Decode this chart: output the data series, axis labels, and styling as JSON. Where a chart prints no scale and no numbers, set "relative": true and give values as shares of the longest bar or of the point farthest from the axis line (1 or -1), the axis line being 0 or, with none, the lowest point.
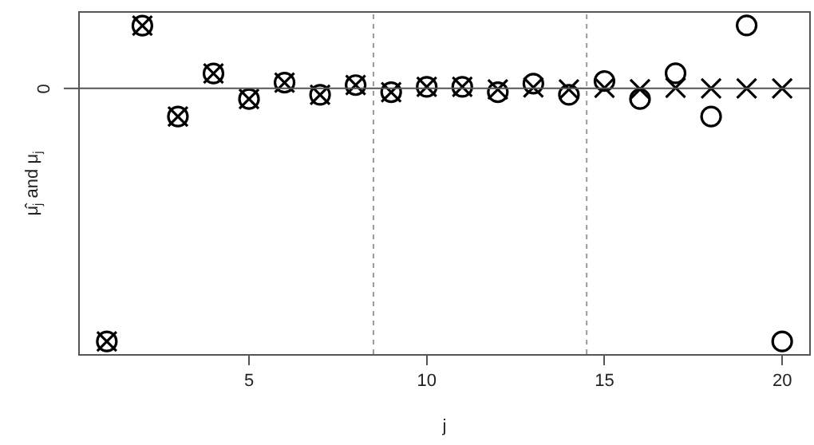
{
  "chart_data": {
    "type": "scatter",
    "xlabel": "j",
    "ylabel": "μ̂$_{j}$ and μ$_{j}$",
    "relative": true,
    "x": [
      1,
      2,
      3,
      4,
      5,
      6,
      7,
      8,
      9,
      10,
      11,
      12,
      13,
      14,
      15,
      16,
      17,
      18,
      19,
      20
    ],
    "xlim": [
      0.24,
      20.76
    ],
    "xticks": [
      5,
      10,
      15,
      20
    ],
    "series": [
      {
        "color": "#000000",
        "marker": "circle",
        "values": [
          -1,
          0.248,
          -0.111,
          0.059,
          -0.042,
          0.023,
          -0.025,
          0.013,
          -0.015,
          0.006,
          0.006,
          -0.015,
          0.019,
          -0.025,
          0.029,
          -0.042,
          0.06,
          -0.111,
          0.249,
          -1
        ]
      },
      {
        "color": "#000000",
        "marker": "cross",
        "values": [
          -1,
          0.248,
          -0.111,
          0.059,
          -0.042,
          0.023,
          -0.025,
          0.013,
          -0.015,
          0.006,
          0.006,
          -0.004,
          0.004,
          -0.004,
          0.002,
          -0.003,
          0.002,
          0,
          0,
          0
        ]
      }
    ],
    "ref_lines": [
      {
        "axis": "y",
        "value": 0,
        "label": "0",
        "color": "#555555",
        "line_style": "solid"
      },
      {
        "axis": "x",
        "value": 8.5,
        "label": null,
        "color": "#999999",
        "line_style": "dotted"
      },
      {
        "axis": "x",
        "value": 14.5,
        "label": null,
        "color": "#999999",
        "line_style": "dotted"
      }
    ]
  }
}
